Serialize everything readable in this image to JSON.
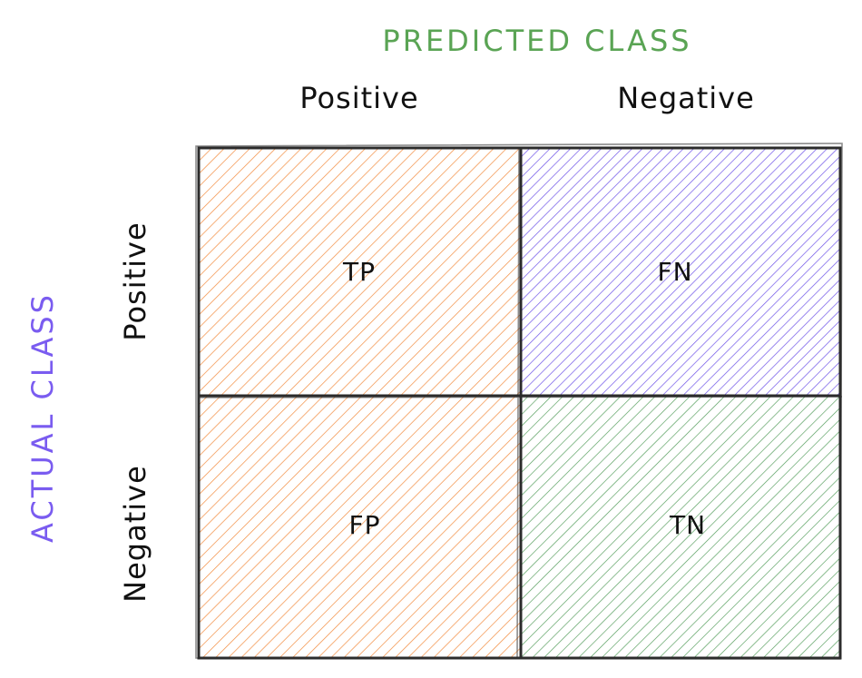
{
  "predicted_axis": {
    "title": "PREDICTED CLASS",
    "labels": [
      "Positive",
      "Negative"
    ],
    "color": "#5aa454"
  },
  "actual_axis": {
    "title": "ACTUAL CLASS",
    "labels": [
      "Positive",
      "Negative"
    ],
    "color": "#7a5cf0"
  },
  "cells": [
    {
      "label": "TP",
      "color": "#f28c3f"
    },
    {
      "label": "FN",
      "color": "#6f55e8"
    },
    {
      "label": "FP",
      "color": "#f28c3f"
    },
    {
      "label": "TN",
      "color": "#4f9a57"
    }
  ]
}
